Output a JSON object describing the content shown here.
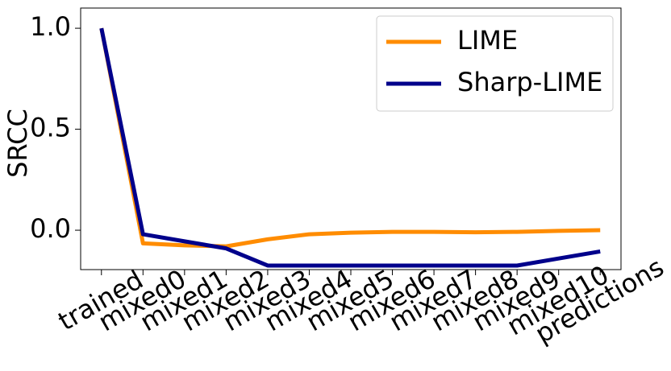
{
  "chart_data": {
    "type": "line",
    "y_label": "SRCC",
    "categories": [
      "trained",
      "mixed0",
      "mixed1",
      "mixed2",
      "mixed3",
      "mixed4",
      "mixed5",
      "mixed6",
      "mixed7",
      "mixed8",
      "mixed9",
      "mixed10",
      "predictions"
    ],
    "series": [
      {
        "name": "LIME",
        "color": "#ff8c00",
        "values": [
          1.0,
          -0.065,
          -0.075,
          -0.08,
          -0.045,
          -0.02,
          -0.012,
          -0.008,
          -0.008,
          -0.01,
          -0.008,
          -0.003,
          0.0
        ]
      },
      {
        "name": "Sharp-LIME",
        "color": "#00008b",
        "values": [
          1.0,
          -0.02,
          -0.055,
          -0.09,
          -0.175,
          -0.175,
          -0.175,
          -0.175,
          -0.175,
          -0.175,
          -0.175,
          -0.14,
          -0.105
        ]
      }
    ],
    "ylim": [
      -0.195,
      1.1
    ],
    "yticks": [
      {
        "value": 0.0,
        "label": "0.0"
      },
      {
        "value": 0.5,
        "label": "0.5"
      },
      {
        "value": 1.0,
        "label": "1.0"
      }
    ],
    "legend": "upper right"
  }
}
